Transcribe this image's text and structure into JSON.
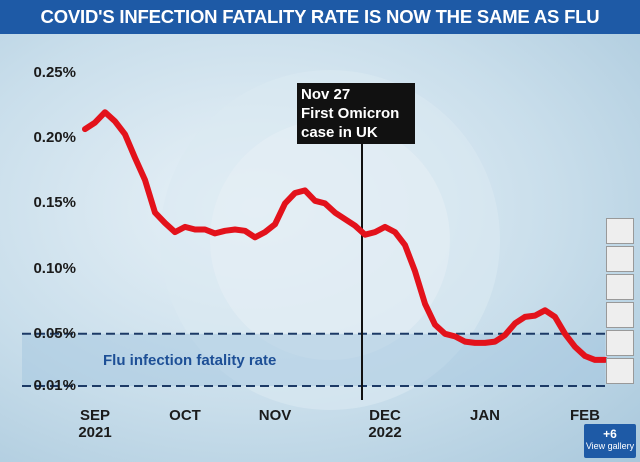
{
  "chart_data": {
    "type": "line",
    "title": "COVID'S INFECTION FATALITY RATE IS NOW THE SAME AS FLU",
    "categories": [
      null,
      "SEP\n2021",
      null,
      null,
      null,
      null,
      null,
      null,
      null,
      null,
      "OCT",
      null,
      null,
      null,
      null,
      null,
      null,
      null,
      null,
      "NOV",
      null,
      null,
      null,
      null,
      null,
      null,
      null,
      null,
      null,
      null,
      "DEC\n2022",
      null,
      null,
      null,
      null,
      null,
      null,
      null,
      null,
      null,
      "JAN",
      null,
      null,
      null,
      null,
      null,
      null,
      null,
      null,
      null,
      "FEB",
      null,
      null
    ],
    "values": [
      0.207,
      0.212,
      0.22,
      0.213,
      0.203,
      0.185,
      0.168,
      0.143,
      0.135,
      0.128,
      0.132,
      0.13,
      0.13,
      0.127,
      0.129,
      0.13,
      0.129,
      0.124,
      0.128,
      0.134,
      0.15,
      0.158,
      0.16,
      0.152,
      0.15,
      0.143,
      0.138,
      0.133,
      0.126,
      0.128,
      0.132,
      0.128,
      0.118,
      0.098,
      0.073,
      0.057,
      0.05,
      0.048,
      0.044,
      0.043,
      0.043,
      0.044,
      0.049,
      0.058,
      0.063,
      0.064,
      0.068,
      0.063,
      0.05,
      0.04,
      0.033,
      0.03,
      0.03
    ],
    "color": "#e3121b",
    "ylim": [
      0,
      0.26
    ],
    "yticks": [
      {
        "value": 0.01,
        "label": "0.01%"
      },
      {
        "value": 0.05,
        "label": "0.05%"
      },
      {
        "value": 0.1,
        "label": "0.10%"
      },
      {
        "value": 0.15,
        "label": "0.15%"
      },
      {
        "value": 0.2,
        "label": "0.20%"
      },
      {
        "value": 0.25,
        "label": "0.25%"
      }
    ],
    "grid": false,
    "reference_band": {
      "label": "Flu infection fatality rate",
      "range": [
        0.01,
        0.05
      ],
      "color": "#1d4f96"
    },
    "annotation": "Nov 27\nFirst Omicron\ncase in UK"
  },
  "ui": {
    "gallery_count": "+6",
    "gallery_label": "View gallery"
  }
}
